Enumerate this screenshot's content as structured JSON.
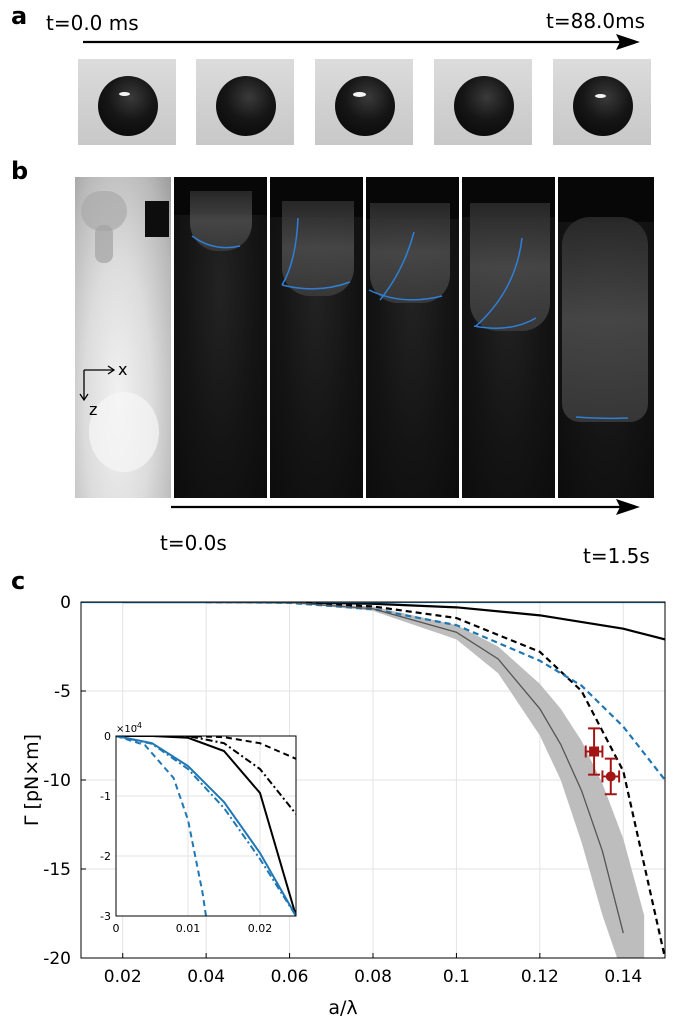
{
  "panel_a": {
    "letter": "a",
    "time_start": "t=0.0 ms",
    "time_end": "t=88.0ms",
    "frame_count": 5
  },
  "panel_b": {
    "letter": "b",
    "time_start": "t=0.0s",
    "time_end": "t=1.5s",
    "axis_x_label": "x",
    "axis_z_label": "z",
    "interface_color": "#2f7fd6"
  },
  "panel_c": {
    "letter": "c",
    "chart_data": {
      "type": "line",
      "xlabel": "a/λ",
      "ylabel": "Γ [pN×m]",
      "xlim": [
        0.01,
        0.15
      ],
      "ylim": [
        -20,
        0
      ],
      "xticks": [
        "0.02",
        "0.04",
        "0.06",
        "0.08",
        "0.1",
        "0.12",
        "0.14"
      ],
      "yticks": [
        "0",
        "-5",
        "-10",
        "-15",
        "-20"
      ],
      "grid": true,
      "series": [
        {
          "style": "solid",
          "color": "#000000",
          "x": [
            0.02,
            0.04,
            0.06,
            0.08,
            0.1,
            0.12,
            0.14,
            0.15
          ],
          "y": [
            0,
            0,
            -0.02,
            -0.1,
            -0.3,
            -0.75,
            -1.5,
            -2.1
          ]
        },
        {
          "style": "solid",
          "color": "#1f77b4",
          "x": [
            0.01,
            0.15
          ],
          "y": [
            0,
            0
          ]
        },
        {
          "style": "dashed",
          "color": "#000000",
          "x": [
            0.04,
            0.06,
            0.08,
            0.1,
            0.12,
            0.13,
            0.14,
            0.15
          ],
          "y": [
            0,
            -0.03,
            -0.25,
            -0.9,
            -2.8,
            -5.0,
            -9.5,
            -20
          ]
        },
        {
          "style": "dashed",
          "color": "#1f77b4",
          "x": [
            0.04,
            0.06,
            0.08,
            0.1,
            0.12,
            0.13,
            0.14,
            0.15
          ],
          "y": [
            0,
            -0.05,
            -0.4,
            -1.3,
            -3.3,
            -4.7,
            -7.0,
            -10
          ]
        },
        {
          "style": "band",
          "color": "#bdbdbd",
          "x": [
            0.02,
            0.04,
            0.06,
            0.08,
            0.1,
            0.11,
            0.12,
            0.125,
            0.13,
            0.135,
            0.14,
            0.145
          ],
          "y_low": [
            0,
            0,
            -0.05,
            -0.5,
            -2.1,
            -4.0,
            -7.5,
            -10.0,
            -13.5,
            -17.6,
            -21,
            -24
          ],
          "y_high": [
            0,
            0,
            -0.02,
            -0.25,
            -1.3,
            -2.5,
            -4.6,
            -6.0,
            -7.8,
            -10.2,
            -13.3,
            -17.6
          ]
        },
        {
          "style": "solid",
          "color": "#555555",
          "x": [
            0.02,
            0.04,
            0.06,
            0.08,
            0.1,
            0.11,
            0.12,
            0.125,
            0.13,
            0.135,
            0.14
          ],
          "y": [
            0,
            0,
            -0.03,
            -0.38,
            -1.7,
            -3.2,
            -6.0,
            -8.0,
            -10.6,
            -14.0,
            -18.6
          ]
        }
      ],
      "points": [
        {
          "marker": "square",
          "color": "#a31515",
          "x": 0.133,
          "y": -8.4,
          "xerr": 0.002,
          "yerr": 1.3
        },
        {
          "marker": "circle",
          "color": "#a31515",
          "x": 0.137,
          "y": -9.8,
          "xerr": 0.002,
          "yerr": 1.0
        }
      ],
      "inset": {
        "type": "line",
        "exponent_label": "×10",
        "exponent_power": "-4",
        "xlim": [
          0,
          0.025
        ],
        "ylim": [
          -3,
          0
        ],
        "xticks": [
          "0",
          "0.01",
          "0.02"
        ],
        "yticks": [
          "0",
          "-1",
          "-2",
          "-3"
        ],
        "series": [
          {
            "style": "dashed",
            "color": "#000000",
            "x": [
              0,
              0.01,
              0.015,
              0.02,
              0.025
            ],
            "y": [
              0,
              0,
              -0.02,
              -0.12,
              -0.38
            ]
          },
          {
            "style": "dashdot",
            "color": "#000000",
            "x": [
              0,
              0.01,
              0.015,
              0.02,
              0.025
            ],
            "y": [
              0,
              0,
              -0.12,
              -0.55,
              -1.3
            ]
          },
          {
            "style": "solid",
            "color": "#000000",
            "x": [
              0,
              0.005,
              0.01,
              0.015,
              0.02,
              0.025
            ],
            "y": [
              0,
              0,
              -0.03,
              -0.25,
              -0.95,
              -3.0
            ]
          },
          {
            "style": "solid",
            "color": "#1f77b4",
            "x": [
              0,
              0.005,
              0.01,
              0.015,
              0.02,
              0.025
            ],
            "y": [
              0,
              -0.12,
              -0.5,
              -1.1,
              -1.95,
              -3.0
            ]
          },
          {
            "style": "dashdot",
            "color": "#1f77b4",
            "x": [
              0,
              0.005,
              0.01,
              0.015,
              0.02,
              0.025
            ],
            "y": [
              0,
              -0.13,
              -0.55,
              -1.2,
              -2.05,
              -3.0
            ]
          },
          {
            "style": "dashed",
            "color": "#1f77b4",
            "x": [
              0,
              0.004,
              0.008,
              0.01,
              0.012,
              0.0125
            ],
            "y": [
              0,
              -0.15,
              -0.7,
              -1.4,
              -2.6,
              -3.0
            ]
          }
        ]
      }
    }
  }
}
